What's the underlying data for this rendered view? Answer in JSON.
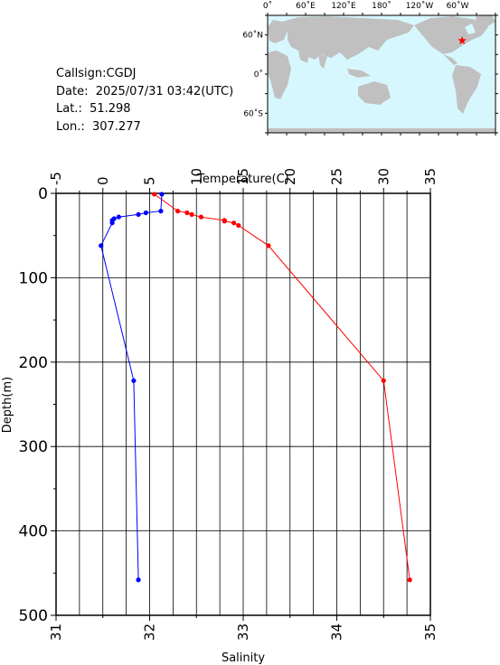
{
  "info": {
    "callsign": "Callsign:CGDJ",
    "date": "Date:  2025/07/31 03:42(UTC)",
    "lat": "Lat.:  51.298",
    "lon": "Lon.:  307.277"
  },
  "map": {
    "top_labels": [
      "0˚",
      "60˚E",
      "120˚E",
      "180˚",
      "120˚W",
      "60˚W"
    ],
    "left_labels": [
      "60˚N",
      "0˚",
      "60˚S"
    ],
    "ocean_color": "#D7F7FE",
    "land_color": "#C0C0C0",
    "marker_color": "#FF0000",
    "marker_lon": 307.277,
    "marker_lat": 51.298
  },
  "chart_data": {
    "type": "line",
    "top_axis_label": "Temperature(C)",
    "bottom_axis_label": "Salinity",
    "left_axis_label": "Depth(m)",
    "temperature_ticks": [
      "-5",
      "0",
      "5",
      "10",
      "15",
      "20",
      "25",
      "30",
      "35"
    ],
    "salinity_ticks": [
      "31",
      "32",
      "33",
      "34",
      "35"
    ],
    "depth_ticks": [
      "0",
      "100",
      "200",
      "300",
      "400",
      "500"
    ],
    "temperature_range": [
      -5,
      35
    ],
    "salinity_range": [
      31,
      35
    ],
    "depth_range": [
      0,
      500
    ],
    "grid": true,
    "series": [
      {
        "quantity": "temperature",
        "color": "#FF0000",
        "depth": [
          1,
          21,
          23,
          25,
          28,
          32,
          33,
          35,
          38,
          62,
          222,
          458
        ],
        "value": [
          5.5,
          8,
          9,
          9.5,
          10.5,
          13,
          13,
          14,
          14.5,
          17.7,
          30,
          32.8
        ]
      },
      {
        "quantity": "salinity",
        "color": "#0000FF",
        "depth": [
          1,
          21,
          23,
          25,
          28,
          30,
          32,
          35,
          62,
          222,
          458
        ],
        "value": [
          32.13,
          32.12,
          31.96,
          31.88,
          31.67,
          31.62,
          31.6,
          31.6,
          31.48,
          31.83,
          31.88
        ]
      }
    ]
  }
}
